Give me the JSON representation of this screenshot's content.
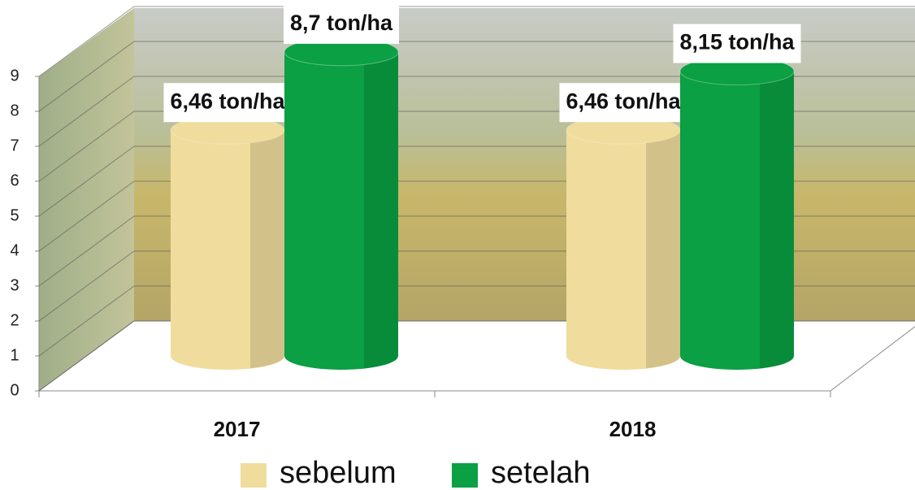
{
  "chart_data": {
    "type": "bar3d",
    "categories": [
      "2017",
      "2018"
    ],
    "series": [
      {
        "name": "sebelum",
        "color": "#f0dc9c",
        "values": [
          6.46,
          6.46
        ],
        "value_labels": [
          "6,46 ton/ha",
          "6,46 ton/ha"
        ]
      },
      {
        "name": "setelah",
        "color": "#0aa043",
        "values": [
          8.7,
          8.15
        ],
        "value_labels": [
          "8,7 ton/ha",
          "8,15 ton/ha"
        ]
      }
    ],
    "ylim": [
      0,
      9
    ],
    "yticks": [
      0,
      1,
      2,
      3,
      4,
      5,
      6,
      7,
      8,
      9
    ],
    "grid": true,
    "legend": "bottom"
  }
}
